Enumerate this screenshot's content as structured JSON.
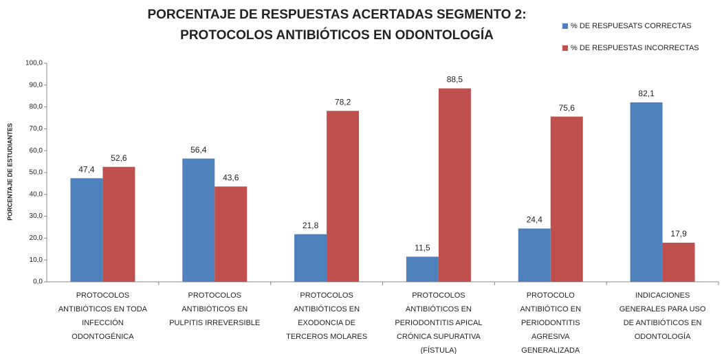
{
  "chart_data": {
    "type": "bar",
    "title": [
      "PORCENTAJE DE RESPUESTAS ACERTADAS SEGMENTO 2:",
      "PROTOCOLOS ANTIBIÓTICOS EN ODONTOLOGÍA"
    ],
    "ylabel": "PORCENTAJE DE ESTUDIANTES",
    "categories": [
      [
        "PROTOCOLOS",
        "ANTIBIÓTICOS EN TODA",
        "INFECCIÓN",
        "ODONTOGÉNICA"
      ],
      [
        "PROTOCOLOS",
        "ANTIBIÓTICOS EN",
        "PULPITIS IRREVERSIBLE"
      ],
      [
        "PROTOCOLOS",
        "ANTIBIÓTICOS EN",
        "EXODONCIA DE",
        "TERCEROS MOLARES"
      ],
      [
        "PROTOCOLOS",
        "ANTIBIÓTICOS EN",
        "PERIODONTITIS APICAL",
        "CRÓNICA SUPURATIVA",
        "(FÍSTULA)"
      ],
      [
        "PROTOCOLO",
        "ANTIBIÓTICO EN",
        "PERIODONTITIS",
        "AGRESIVA",
        "GENERALIZADA"
      ],
      [
        "INDICACIONES",
        "GENERALES PARA USO",
        "DE ANTIBIÓTICOS EN",
        "ODONTOLOGÍA"
      ]
    ],
    "series": [
      {
        "name": "% DE RESPUESATS CORRECTAS",
        "color": "#4f81bd",
        "values": [
          47.4,
          56.4,
          21.8,
          11.5,
          24.4,
          82.1
        ],
        "value_labels": [
          "47,4",
          "56,4",
          "21,8",
          "11,5",
          "24,4",
          "82,1"
        ]
      },
      {
        "name": "% DE RESPUESTAS INCORRECTAS",
        "color": "#c0504d",
        "values": [
          52.6,
          43.6,
          78.2,
          88.5,
          75.6,
          17.9
        ],
        "value_labels": [
          "52,6",
          "43,6",
          "78,2",
          "88,5",
          "75,6",
          "17,9"
        ]
      }
    ],
    "ylim": [
      0,
      100
    ],
    "yticks": [
      {
        "value": 0,
        "label": "0,0"
      },
      {
        "value": 10,
        "label": "10,0"
      },
      {
        "value": 20,
        "label": "20,0"
      },
      {
        "value": 30,
        "label": "30,0"
      },
      {
        "value": 40,
        "label": "40,0"
      },
      {
        "value": 50,
        "label": "50,0"
      },
      {
        "value": 60,
        "label": "60,0"
      },
      {
        "value": 70,
        "label": "70,0"
      },
      {
        "value": 80,
        "label": "80,0"
      },
      {
        "value": 90,
        "label": "90,0"
      },
      {
        "value": 100,
        "label": "100,0"
      }
    ],
    "legend": "top-right"
  }
}
